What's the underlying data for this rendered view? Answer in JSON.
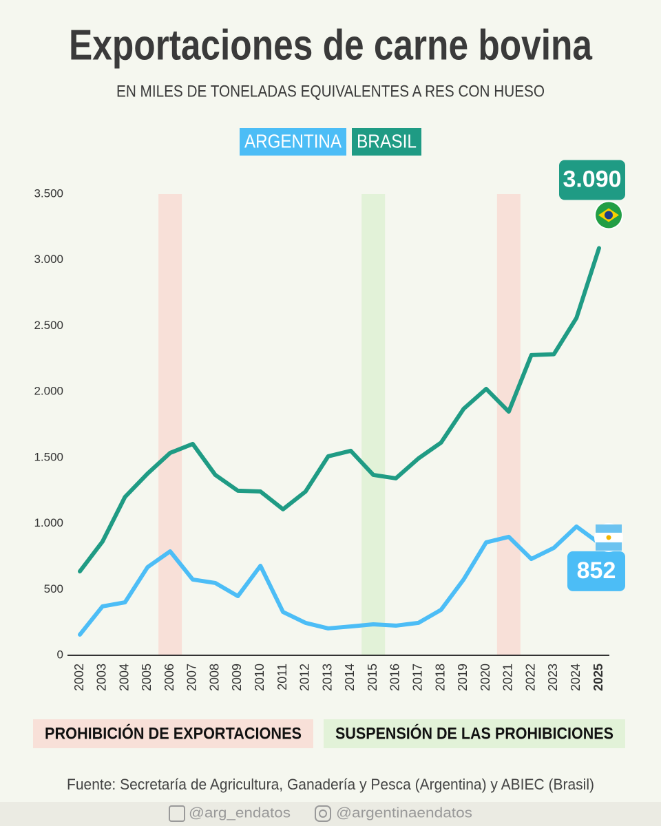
{
  "chart_data": {
    "type": "line",
    "title": "Exportaciones de carne bovina",
    "subtitle": "EN MILES DE TONELADAS EQUIVALENTES A RES CON HUESO",
    "categories": [
      "2002",
      "2003",
      "2004",
      "2005",
      "2006",
      "2007",
      "2008",
      "2009",
      "2010",
      "2011",
      "2012",
      "2013",
      "2014",
      "2015",
      "2016",
      "2017",
      "2018",
      "2019",
      "2020",
      "2021",
      "2022",
      "2023",
      "2024",
      "2025"
    ],
    "series": [
      {
        "name": "ARGENTINA",
        "color": "#4cbdf6",
        "values": [
          157,
          371,
          402,
          669,
          789,
          575,
          549,
          449,
          679,
          329,
          246,
          204,
          219,
          235,
          225,
          246,
          345,
          575,
          857,
          899,
          731,
          815,
          977,
          852
        ]
      },
      {
        "name": "BRASIL",
        "color": "#1f9b84",
        "values": [
          637,
          862,
          1202,
          1379,
          1536,
          1604,
          1369,
          1249,
          1243,
          1108,
          1243,
          1510,
          1552,
          1369,
          1343,
          1494,
          1614,
          1870,
          2022,
          1849,
          2278,
          2285,
          2560,
          3090
        ]
      }
    ],
    "end_labels": [
      {
        "series": 0,
        "label": "852"
      },
      {
        "series": 1,
        "label": "3.090"
      }
    ],
    "ylim": [
      0,
      3500
    ],
    "yticks": [
      0,
      500,
      {
        "value": 1000,
        "label": "1.000"
      },
      {
        "value": 1500,
        "label": "1.500"
      },
      {
        "value": 2000,
        "label": "2.000"
      },
      {
        "value": 2500,
        "label": "2.500"
      },
      {
        "value": 3000,
        "label": "3.000"
      },
      {
        "value": 3500,
        "label": "3.500"
      }
    ],
    "bands": [
      {
        "label": "PROHIBICIÓN DE EXPORTACIONES",
        "color": "#f8e0d8",
        "categories": [
          "2006",
          "2021"
        ]
      },
      {
        "label": "SUSPENSIÓN DE LAS PROHIBICIONES",
        "color": "#e2f2d8",
        "categories": [
          "2015"
        ]
      }
    ],
    "source": "Fuente: Secretaría de Agricultura, Ganadería y Pesca (Argentina) y ABIEC (Brasil)",
    "handles": [
      "@arg_endatos",
      "@argentinaendatos"
    ]
  }
}
